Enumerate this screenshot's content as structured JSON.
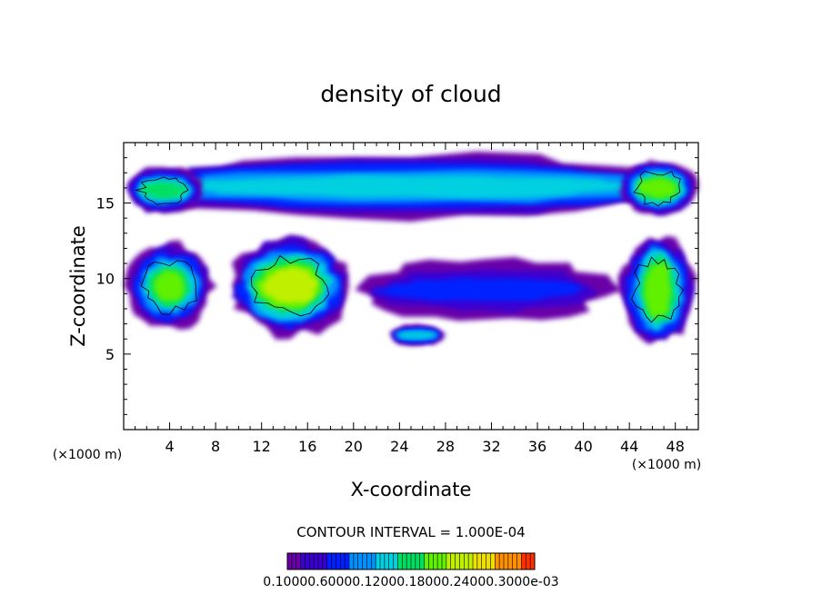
{
  "chart_data": {
    "type": "heatmap",
    "title": "density of cloud",
    "xlabel": "X-coordinate",
    "ylabel": "Z-coordinate",
    "x_unit": "(×1000 m)",
    "xlim": [
      0,
      50
    ],
    "ylim": [
      0,
      19
    ],
    "x_ticks": [
      4,
      8,
      12,
      16,
      20,
      24,
      28,
      32,
      36,
      40,
      44,
      48
    ],
    "y_ticks": [
      5,
      10,
      15
    ],
    "contour_interval_text": "CONTOUR INTERVAL = 1.000E-04",
    "colorbar": {
      "tick_labels": [
        "0.1000e-05",
        "0.6000e-04",
        "0.1200e-03",
        "0.1800e-03",
        "0.2400e-03",
        "0.3000e-03"
      ],
      "overlap_text": "0.10000.60000.12000.18000.24000.3000e-03",
      "colors": [
        "#6a00a8",
        "#3a00d0",
        "#0020ff",
        "#0090ff",
        "#00d0e0",
        "#00e060",
        "#60f000",
        "#c0f000",
        "#f0e000",
        "#ff9000",
        "#ff3000"
      ]
    },
    "regions": [
      {
        "name": "upper-layer",
        "x": [
          0,
          50
        ],
        "z": [
          13.8,
          18.4
        ],
        "level": 0.4
      },
      {
        "name": "upper-left-core",
        "x": [
          0,
          7
        ],
        "z": [
          14.2,
          17.5
        ],
        "level": 0.45
      },
      {
        "name": "upper-right-core",
        "x": [
          43,
          50
        ],
        "z": [
          14.0,
          18.0
        ],
        "level": 0.55
      },
      {
        "name": "mid-left-cell",
        "x": [
          0,
          8
        ],
        "z": [
          6.5,
          12.5
        ],
        "level": 0.6
      },
      {
        "name": "mid-central-cell",
        "x": [
          9,
          20
        ],
        "z": [
          6.0,
          13.0
        ],
        "level": 0.65
      },
      {
        "name": "mid-thin-band",
        "x": [
          20,
          43
        ],
        "z": [
          7.0,
          11.5
        ],
        "level": 0.15
      },
      {
        "name": "mid-right-cell",
        "x": [
          43,
          50
        ],
        "z": [
          5.5,
          13.0
        ],
        "level": 0.6
      },
      {
        "name": "lower-blob",
        "x": [
          23,
          28
        ],
        "z": [
          5.5,
          7.0
        ],
        "level": 0.35
      }
    ]
  }
}
